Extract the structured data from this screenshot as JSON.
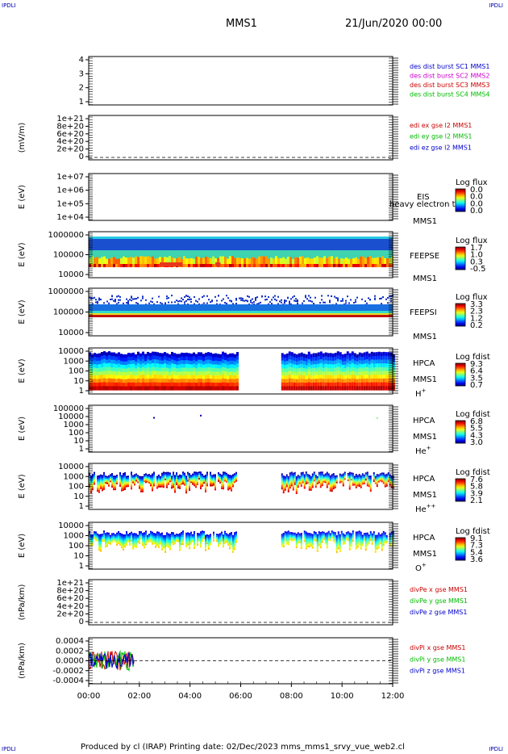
{
  "header": {
    "corner_tl": "IPDLI",
    "corner_tr": "IPDLI",
    "corner_bl": "IPDLI",
    "corner_br": "IPDLI",
    "satellite": "MMS1",
    "date": "21/Jun/2020 00:00"
  },
  "footer": {
    "text": "Produced by cl (IRAP)   Printing date: 02/Dec/2023   mms_mms1_srvy_vue_web2.cl"
  },
  "chart_data": {
    "type": "multi-panel time series / spectrogram",
    "x_axis": {
      "ticks": [
        "00:00",
        "02:00",
        "04:00",
        "06:00",
        "08:00",
        "10:00",
        "12:00"
      ],
      "range_hours": [
        0,
        12
      ]
    },
    "panels": [
      {
        "id": "dist-burst",
        "type": "line",
        "ylabel": "",
        "yticks": [
          "4",
          "3",
          "2",
          "1"
        ],
        "ylim": [
          0.5,
          4.5
        ],
        "legend": [
          {
            "label": "des dist burst SC1 MMS1",
            "color": "#0000cc"
          },
          {
            "label": "des dist burst SC2 MMS2",
            "color": "#cc00cc"
          },
          {
            "label": "des dist burst SC3 MMS3",
            "color": "#cc0000"
          },
          {
            "label": "des dist burst SC4 MMS4",
            "color": "#00bb00"
          }
        ]
      },
      {
        "id": "edi-e",
        "type": "line",
        "ylabel": "(mV/m)",
        "yticks": [
          "1e+21",
          "8e+20",
          "6e+20",
          "4e+20",
          "2e+20",
          "0"
        ],
        "ylim": [
          0,
          1e+21
        ],
        "zero_line": true,
        "legend": [
          {
            "label": "edi ex gse l2 MMS1",
            "color": "#cc0000"
          },
          {
            "label": "edi ey gse l2 MMS1",
            "color": "#00bb00"
          },
          {
            "label": "edi ez gse l2 MMS1",
            "color": "#0000cc"
          }
        ]
      },
      {
        "id": "eis",
        "type": "heatmap",
        "ylabel": "E (eV)",
        "yticks": [
          "1e+07",
          "1e+06",
          "1e+05",
          "1e+04"
        ],
        "log_scale": true,
        "instrument": "EIS",
        "overlay": "heavy electron to",
        "spacecraft": "MMS1",
        "colorbar": {
          "title": "Log flux",
          "ticks": [
            "0.0",
            "0.0",
            "0.0",
            "0.0"
          ]
        },
        "coverage": []
      },
      {
        "id": "feeps-e",
        "type": "heatmap",
        "ylabel": "E (eV)",
        "yticks": [
          "1000000",
          "100000",
          "10000"
        ],
        "log_scale": true,
        "instrument": "FEEPSE",
        "spacecraft": "MMS1",
        "colorbar": {
          "title": "Log flux",
          "ticks": [
            "1.7",
            "1.0",
            "0.3",
            "-0.5"
          ]
        },
        "coverage": [
          [
            0,
            12
          ]
        ]
      },
      {
        "id": "feeps-i",
        "type": "heatmap",
        "ylabel": "E (eV)",
        "yticks": [
          "1000000",
          "100000",
          "10000"
        ],
        "log_scale": true,
        "instrument": "FEEPSI",
        "spacecraft": "MMS1",
        "colorbar": {
          "title": "Log flux",
          "ticks": [
            "3.3",
            "2.3",
            "1.2",
            "0.2"
          ]
        },
        "coverage": [
          [
            0,
            12
          ]
        ]
      },
      {
        "id": "hpca-h",
        "type": "heatmap",
        "ylabel": "E (eV)",
        "yticks": [
          "10000",
          "1000",
          "100",
          "10",
          "1"
        ],
        "log_scale": true,
        "instrument": "HPCA",
        "spacecraft": "MMS1",
        "species": "H",
        "species_sup": "+",
        "colorbar": {
          "title": "Log fdist",
          "ticks": [
            "9.3",
            "6.4",
            "3.5",
            "0.7"
          ]
        },
        "coverage": [
          [
            0,
            5.85
          ],
          [
            7.6,
            12
          ]
        ]
      },
      {
        "id": "hpca-he1",
        "type": "heatmap",
        "ylabel": "E (eV)",
        "yticks": [
          "100000",
          "10000",
          "1000",
          "100",
          "10",
          "1"
        ],
        "log_scale": true,
        "instrument": "HPCA",
        "spacecraft": "MMS1",
        "species": "He",
        "species_sup": "+",
        "colorbar": {
          "title": "Log fdist",
          "ticks": [
            "6.8",
            "5.5",
            "4.3",
            "3.0"
          ]
        },
        "coverage": [
          [
            0,
            5.85
          ],
          [
            7.6,
            12
          ]
        ]
      },
      {
        "id": "hpca-he2",
        "type": "heatmap",
        "ylabel": "E (eV)",
        "yticks": [
          "10000",
          "1000",
          "100",
          "10",
          "1"
        ],
        "log_scale": true,
        "instrument": "HPCA",
        "spacecraft": "MMS1",
        "species": "He",
        "species_sup": "++",
        "colorbar": {
          "title": "Log fdist",
          "ticks": [
            "7.6",
            "5.8",
            "3.9",
            "2.1"
          ]
        },
        "coverage": [
          [
            0,
            5.85
          ],
          [
            7.6,
            12
          ]
        ]
      },
      {
        "id": "hpca-o",
        "type": "heatmap",
        "ylabel": "E (eV)",
        "yticks": [
          "10000",
          "1000",
          "100",
          "10",
          "1"
        ],
        "log_scale": true,
        "instrument": "HPCA",
        "spacecraft": "MMS1",
        "species": "O",
        "species_sup": "+",
        "colorbar": {
          "title": "Log fdist",
          "ticks": [
            "9.1",
            "7.3",
            "5.4",
            "3.6"
          ]
        },
        "coverage": [
          [
            0,
            5.85
          ],
          [
            7.6,
            12
          ]
        ]
      },
      {
        "id": "divpe",
        "type": "line",
        "ylabel": "(nPa/km)",
        "yticks": [
          "1e+21",
          "8e+20",
          "6e+20",
          "4e+20",
          "2e+20",
          "0"
        ],
        "ylim": [
          0,
          1e+21
        ],
        "zero_line": true,
        "legend": [
          {
            "label": "divPe x gse MMS1",
            "color": "#cc0000"
          },
          {
            "label": "divPe y gse MMS1",
            "color": "#00bb00"
          },
          {
            "label": "divPe z gse MMS1",
            "color": "#0000cc"
          }
        ]
      },
      {
        "id": "divpi",
        "type": "line",
        "ylabel": "(nPa/km)",
        "yticks": [
          "0.0004",
          "0.0002",
          "0.0000",
          "-0.0002",
          "-0.0004"
        ],
        "ylim": [
          -0.0005,
          0.0005
        ],
        "zero_line": true,
        "data_coverage_hours": [
          0,
          1.8
        ],
        "legend": [
          {
            "label": "divPi x gse MMS1",
            "color": "#cc0000"
          },
          {
            "label": "divPi y gse MMS1",
            "color": "#00bb00"
          },
          {
            "label": "divPi z gse MMS1",
            "color": "#0000cc"
          }
        ]
      }
    ]
  }
}
